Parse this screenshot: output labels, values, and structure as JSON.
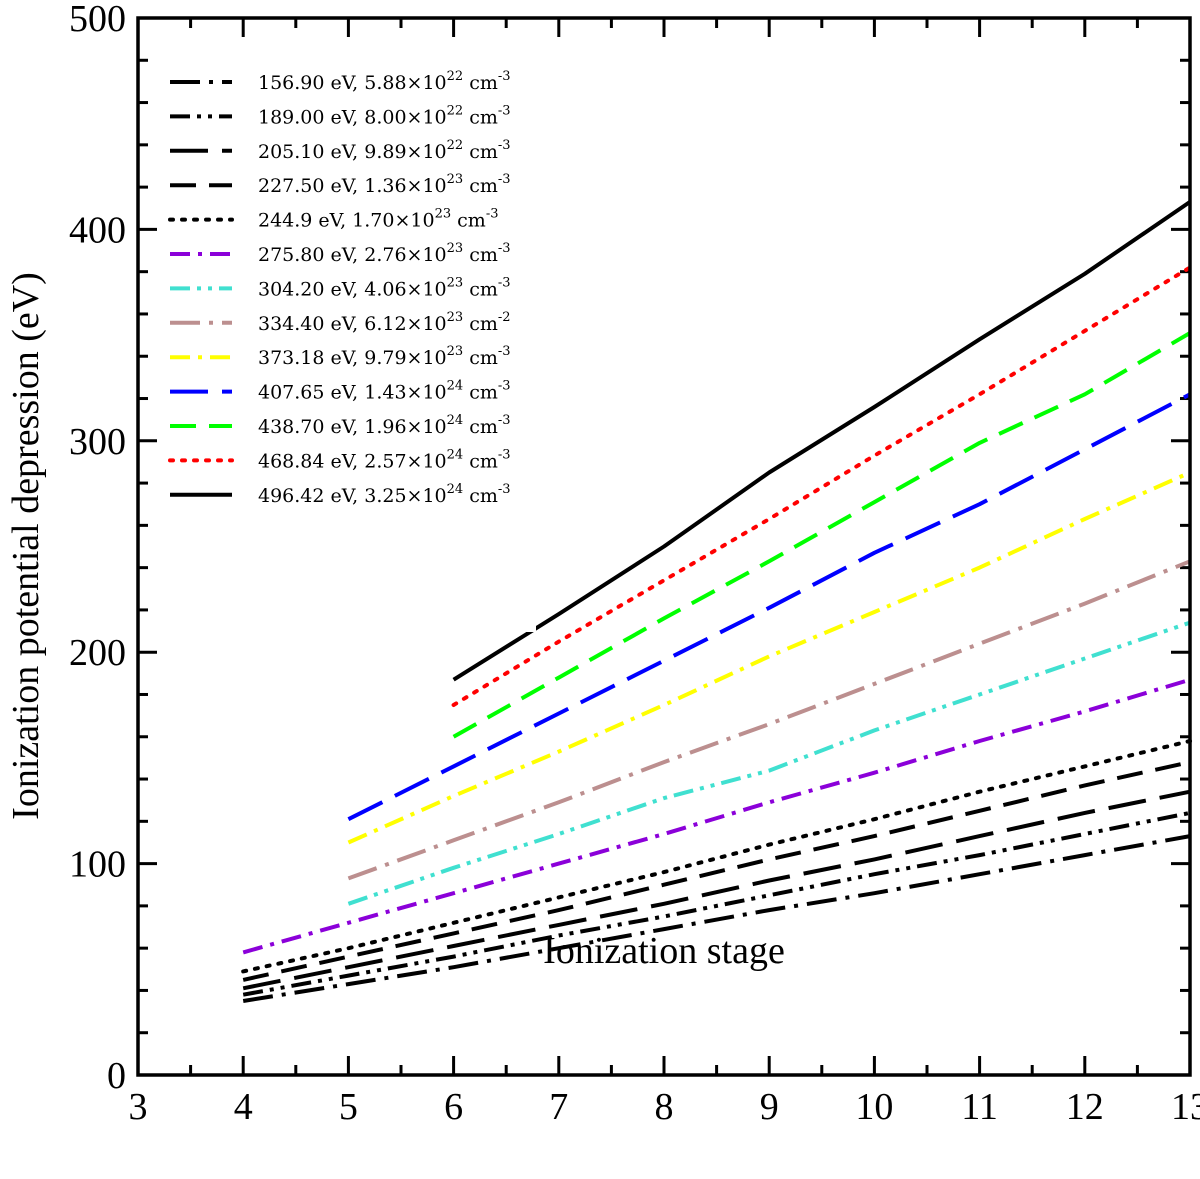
{
  "chart_data": {
    "type": "line",
    "title": "",
    "xlabel": "Ionization stage",
    "ylabel": "Ionization potential depression (eV)",
    "xlim": [
      3,
      13
    ],
    "ylim": [
      0,
      500
    ],
    "x_ticks": [
      3,
      4,
      5,
      6,
      7,
      8,
      9,
      10,
      11,
      12,
      13
    ],
    "y_ticks": [
      0,
      100,
      200,
      300,
      400,
      500
    ],
    "legend_position": "top-left",
    "series": [
      {
        "name": "156.90 eV, 5.88×10^22 cm^-3",
        "label_main": "156.90 eV, 5.88×10",
        "label_exp": "22",
        "label_unit": " cm",
        "label_unit_exp": "-3",
        "color": "#000000",
        "style": "dashdot-long",
        "x": [
          4,
          5,
          6,
          7,
          8,
          9,
          10,
          11,
          12,
          13
        ],
        "y": [
          35,
          43,
          51,
          60,
          69,
          78,
          86,
          95,
          104,
          113
        ]
      },
      {
        "name": "189.00 eV, 8.00×10^22 cm^-3",
        "label_main": "189.00 eV, 8.00×10",
        "label_exp": "22",
        "label_unit": " cm",
        "label_unit_exp": "-3",
        "color": "#000000",
        "style": "dashdotdot",
        "x": [
          4,
          5,
          6,
          7,
          8,
          9,
          10,
          11,
          12,
          13
        ],
        "y": [
          38,
          47,
          56,
          66,
          75,
          85,
          95,
          104,
          114,
          124
        ]
      },
      {
        "name": "205.10 eV, 9.89×10^22 cm^-3",
        "label_main": "205.10 eV, 9.89×10",
        "label_exp": "22",
        "label_unit": " cm",
        "label_unit_exp": "-3",
        "color": "#000000",
        "style": "longdash",
        "x": [
          4,
          5,
          6,
          7,
          8,
          9,
          10,
          11,
          12,
          13
        ],
        "y": [
          41,
          51,
          61,
          71,
          81,
          92,
          102,
          113,
          124,
          134
        ]
      },
      {
        "name": "227.50 eV, 1.36×10^23 cm^-3",
        "label_main": "227.50 eV, 1.36×10",
        "label_exp": "23",
        "label_unit": " cm",
        "label_unit_exp": "-3",
        "color": "#000000",
        "style": "dash",
        "x": [
          4,
          5,
          6,
          7,
          8,
          9,
          10,
          11,
          12,
          13
        ],
        "y": [
          45,
          56,
          67,
          78,
          90,
          102,
          113,
          125,
          137,
          148
        ]
      },
      {
        "name": "244.9 eV, 1.70×10^23 cm^-3",
        "label_main": "244.9 eV, 1.70×10",
        "label_exp": "23",
        "label_unit": " cm",
        "label_unit_exp": "-3",
        "color": "#000000",
        "style": "dot",
        "x": [
          4,
          5,
          6,
          7,
          8,
          9,
          10,
          11,
          12,
          13
        ],
        "y": [
          49,
          60,
          72,
          84,
          96,
          109,
          121,
          134,
          146,
          158
        ]
      },
      {
        "name": "275.80 eV, 2.76×10^23 cm^-3",
        "label_main": "275.80 eV, 2.76×10",
        "label_exp": "23",
        "label_unit": " cm",
        "label_unit_exp": "-3",
        "color": "#8b00d9",
        "style": "dashdot",
        "x": [
          4,
          5,
          6,
          7,
          8,
          9,
          10,
          11,
          12,
          13
        ],
        "y": [
          58,
          72,
          86,
          100,
          114,
          129,
          143,
          158,
          172,
          187
        ]
      },
      {
        "name": "304.20 eV, 4.06×10^23 cm^-3",
        "label_main": "304.20 eV, 4.06×10",
        "label_exp": "23",
        "label_unit": " cm",
        "label_unit_exp": "-3",
        "color": "#40e0d0",
        "style": "dashdotdot",
        "x": [
          5,
          6,
          7,
          8,
          9,
          10,
          11,
          12,
          13
        ],
        "y": [
          81,
          98,
          114,
          131,
          144,
          163,
          180,
          197,
          214
        ]
      },
      {
        "name": "334.40 eV, 6.12×10^23 cm^-2",
        "label_main": "334.40 eV, 6.12×10",
        "label_exp": "23",
        "label_unit": " cm",
        "label_unit_exp": "-2",
        "color": "#bc8f8f",
        "style": "dashdot-long",
        "x": [
          5,
          6,
          7,
          8,
          9,
          10,
          11,
          12,
          13
        ],
        "y": [
          93,
          111,
          129,
          148,
          166,
          185,
          204,
          223,
          243
        ]
      },
      {
        "name": "373.18 eV, 9.79×10^23 cm^-3",
        "label_main": "373.18 eV, 9.79×10",
        "label_exp": "23",
        "label_unit": " cm",
        "label_unit_exp": "-3",
        "color": "#ffff00",
        "style": "dashdot",
        "x": [
          5,
          6,
          7,
          8,
          9,
          10,
          11,
          12,
          13
        ],
        "y": [
          110,
          132,
          153,
          175,
          198,
          219,
          240,
          263,
          285
        ]
      },
      {
        "name": "407.65 eV, 1.43×10^24 cm^-3",
        "label_main": "407.65 eV, 1.43×10",
        "label_exp": "24",
        "label_unit": " cm",
        "label_unit_exp": "-3",
        "color": "#0000ff",
        "style": "longdash",
        "x": [
          5,
          6,
          7,
          8,
          9,
          10,
          11,
          12,
          13
        ],
        "y": [
          121,
          146,
          171,
          196,
          221,
          247,
          270,
          296,
          322
        ]
      },
      {
        "name": "438.70 eV, 1.96×10^24 cm^-3",
        "label_main": "438.70 eV, 1.96×10",
        "label_exp": "24",
        "label_unit": " cm",
        "label_unit_exp": "-3",
        "color": "#00ff00",
        "style": "dash",
        "x": [
          6,
          7,
          8,
          9,
          10,
          11,
          12,
          13
        ],
        "y": [
          160,
          188,
          216,
          243,
          271,
          299,
          322,
          351
        ]
      },
      {
        "name": "468.84 eV, 2.57×10^24 cm^-3",
        "label_main": "468.84 eV, 2.57×10",
        "label_exp": "24",
        "label_unit": " cm",
        "label_unit_exp": "-3",
        "color": "#ff0000",
        "style": "dot",
        "x": [
          6,
          7,
          8,
          9,
          10,
          11,
          12,
          13
        ],
        "y": [
          175,
          205,
          234,
          263,
          293,
          322,
          352,
          382
        ]
      },
      {
        "name": "496.42 eV, 3.25×10^24 cm^-3",
        "label_main": "496.42 eV, 3.25×10",
        "label_exp": "24",
        "label_unit": " cm",
        "label_unit_exp": "-3",
        "color": "#000000",
        "style": "solid",
        "x": [
          6,
          7,
          8,
          9,
          10,
          11,
          12,
          13
        ],
        "y": [
          187,
          218,
          250,
          285,
          316,
          348,
          379,
          413
        ]
      }
    ]
  }
}
